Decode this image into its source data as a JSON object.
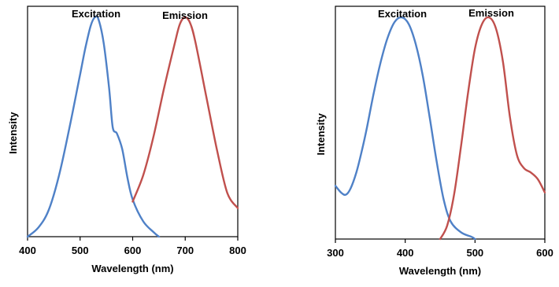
{
  "chart_data": [
    {
      "type": "line",
      "xlabel": "Wavelength (nm)",
      "ylabel": "Intensity",
      "xlim": [
        400,
        800
      ],
      "ylim": [
        0,
        1.05
      ],
      "xticks": [
        "400",
        "500",
        "600",
        "700",
        "800"
      ],
      "grid": false,
      "series": [
        {
          "name": "Excitation",
          "color": "#4f81c7",
          "points": [
            [
              400,
              0.0
            ],
            [
              420,
              0.04
            ],
            [
              440,
              0.12
            ],
            [
              460,
              0.28
            ],
            [
              480,
              0.5
            ],
            [
              500,
              0.74
            ],
            [
              510,
              0.86
            ],
            [
              520,
              0.96
            ],
            [
              528,
              1.0
            ],
            [
              535,
              0.99
            ],
            [
              545,
              0.88
            ],
            [
              555,
              0.68
            ],
            [
              562,
              0.5
            ],
            [
              570,
              0.47
            ],
            [
              580,
              0.4
            ],
            [
              590,
              0.27
            ],
            [
              600,
              0.17
            ],
            [
              620,
              0.07
            ],
            [
              640,
              0.02
            ],
            [
              650,
              0.0
            ]
          ]
        },
        {
          "name": "Emission",
          "color": "#c0504d",
          "points": [
            [
              600,
              0.16
            ],
            [
              620,
              0.28
            ],
            [
              640,
              0.46
            ],
            [
              660,
              0.68
            ],
            [
              680,
              0.88
            ],
            [
              690,
              0.97
            ],
            [
              700,
              1.0
            ],
            [
              710,
              0.97
            ],
            [
              720,
              0.88
            ],
            [
              740,
              0.64
            ],
            [
              760,
              0.4
            ],
            [
              780,
              0.2
            ],
            [
              800,
              0.13
            ]
          ]
        }
      ]
    },
    {
      "type": "line",
      "xlabel": "Wavelength (nm)",
      "ylabel": "Intensity",
      "xlim": [
        300,
        600
      ],
      "ylim": [
        0,
        1.05
      ],
      "xticks": [
        "300",
        "400",
        "500",
        "600"
      ],
      "grid": false,
      "series": [
        {
          "name": "Excitation",
          "color": "#4f81c7",
          "points": [
            [
              300,
              0.24
            ],
            [
              308,
              0.21
            ],
            [
              315,
              0.2
            ],
            [
              322,
              0.23
            ],
            [
              330,
              0.3
            ],
            [
              338,
              0.4
            ],
            [
              345,
              0.5
            ],
            [
              355,
              0.66
            ],
            [
              365,
              0.8
            ],
            [
              375,
              0.91
            ],
            [
              385,
              0.98
            ],
            [
              395,
              1.0
            ],
            [
              405,
              0.97
            ],
            [
              415,
              0.88
            ],
            [
              425,
              0.74
            ],
            [
              435,
              0.55
            ],
            [
              445,
              0.35
            ],
            [
              455,
              0.18
            ],
            [
              465,
              0.08
            ],
            [
              480,
              0.03
            ],
            [
              495,
              0.01
            ],
            [
              500,
              0.0
            ]
          ]
        },
        {
          "name": "Emission",
          "color": "#c0504d",
          "points": [
            [
              450,
              0.0
            ],
            [
              460,
              0.06
            ],
            [
              470,
              0.2
            ],
            [
              480,
              0.42
            ],
            [
              490,
              0.66
            ],
            [
              500,
              0.86
            ],
            [
              510,
              0.97
            ],
            [
              520,
              1.0
            ],
            [
              530,
              0.95
            ],
            [
              540,
              0.8
            ],
            [
              550,
              0.55
            ],
            [
              560,
              0.38
            ],
            [
              570,
              0.32
            ],
            [
              580,
              0.3
            ],
            [
              590,
              0.27
            ],
            [
              600,
              0.21
            ]
          ]
        }
      ]
    }
  ]
}
